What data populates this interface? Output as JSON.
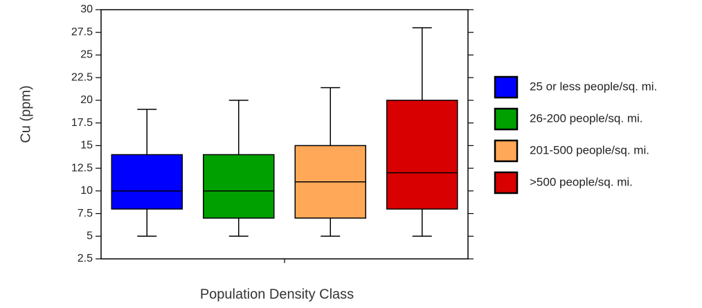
{
  "chart_data": {
    "type": "box",
    "xlabel": "Population Density Class",
    "ylabel": "Cu (ppm)",
    "ylim": [
      2.5,
      30
    ],
    "yticks": [
      "2.5",
      "5",
      "7.5",
      "10",
      "12.5",
      "15",
      "17.5",
      "20",
      "22.5",
      "25",
      "27.5",
      "30"
    ],
    "legend_position": "right",
    "series": [
      {
        "name": "25 or less people/sq. mi.",
        "color": "#0000ff",
        "min": 5,
        "q1": 8,
        "median": 10,
        "q3": 14,
        "max": 19
      },
      {
        "name": "26-200 people/sq. mi.",
        "color": "#00a000",
        "min": 5,
        "q1": 7,
        "median": 10,
        "q3": 14,
        "max": 20
      },
      {
        "name": "201-500 people/sq. mi.",
        "color": "#ffa858",
        "min": 5,
        "q1": 7,
        "median": 11,
        "q3": 15,
        "max": 21.4
      },
      {
        "name": ">500 people/sq. mi.",
        "color": "#d80000",
        "min": 5,
        "q1": 8,
        "median": 12,
        "q3": 20,
        "max": 28
      }
    ]
  }
}
